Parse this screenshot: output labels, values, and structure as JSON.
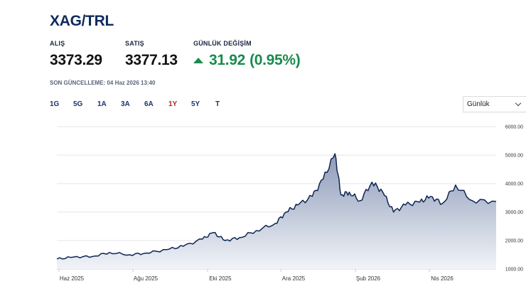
{
  "title": "XAG/TRL",
  "quote": {
    "bid_label": "ALIŞ",
    "bid_value": "3373.29",
    "ask_label": "SATIŞ",
    "ask_value": "3377.13",
    "change_label": "GÜNLÜK DEĞİŞİM",
    "change_value": "31.92",
    "change_pct": "(0.95%)",
    "change_direction": "up",
    "up_color": "#1a8a4e"
  },
  "updated": "SON GÜNCELLEME: 04 Haz 2026 13:40",
  "ranges": [
    {
      "label": "1G",
      "active": false
    },
    {
      "label": "5G",
      "active": false
    },
    {
      "label": "1A",
      "active": false
    },
    {
      "label": "3A",
      "active": false
    },
    {
      "label": "6A",
      "active": false
    },
    {
      "label": "1Y",
      "active": true
    },
    {
      "label": "5Y",
      "active": false
    },
    {
      "label": "T",
      "active": false
    }
  ],
  "interval_select": {
    "value": "Günlük"
  },
  "chart_data": {
    "type": "area",
    "ylim": [
      1000,
      6000
    ],
    "y_ticks": [
      6000,
      5000,
      4000,
      3000,
      2000,
      1000
    ],
    "y_tick_labels": [
      "6000.00",
      "5000.00",
      "4000.00",
      "3000.00",
      "2000.00",
      "1000.00"
    ],
    "x_tick_labels": [
      "Haz 2025",
      "Ağu 2025",
      "Eki 2025",
      "Ara 2025",
      "Şub 2026",
      "Nis 2026"
    ],
    "grid": true,
    "line_color": "#0e2553",
    "fill_top_color": "#8d9bb8",
    "fill_bottom_color": "#f1f3f8",
    "series": [
      {
        "x": [
          "2025-06-01",
          "2025-06-15",
          "2025-07-01",
          "2025-07-15",
          "2025-08-01",
          "2025-08-15",
          "2025-09-01",
          "2025-09-15",
          "2025-10-01",
          "2025-10-10",
          "2025-10-20",
          "2025-11-01",
          "2025-11-15",
          "2025-12-01",
          "2025-12-10",
          "2025-12-20",
          "2026-01-01",
          "2026-01-10",
          "2026-01-20",
          "2026-01-25",
          "2026-02-01",
          "2026-02-10",
          "2026-02-20",
          "2026-03-01",
          "2026-03-10",
          "2026-03-20",
          "2026-04-01",
          "2026-04-10",
          "2026-04-20",
          "2026-05-01",
          "2026-05-15",
          "2026-06-04"
        ],
        "y": [
          1350,
          1420,
          1440,
          1580,
          1500,
          1560,
          1680,
          1800,
          2050,
          2280,
          2000,
          2100,
          2350,
          2600,
          3000,
          3250,
          3550,
          4150,
          5050,
          3600,
          3700,
          3400,
          4050,
          3700,
          3000,
          3250,
          3350,
          3550,
          3300,
          3950,
          3400,
          3373
        ]
      }
    ]
  }
}
